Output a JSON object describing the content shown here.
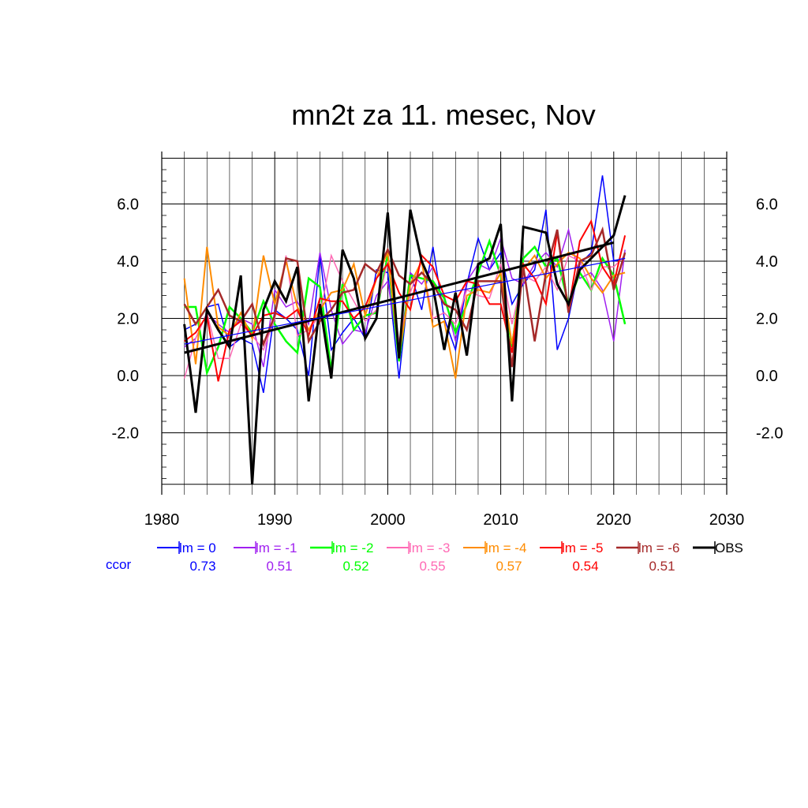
{
  "chart_data": {
    "type": "line",
    "title": "mn2t za 11. mesec, Nov",
    "xlim": [
      1980,
      2030
    ],
    "ylim": [
      -3.8,
      7.6
    ],
    "x_ticks": [
      1980,
      1990,
      2000,
      2010,
      2020,
      2030
    ],
    "x_tick_labels": [
      "1980",
      "1990",
      "2000",
      "2010",
      "2020",
      "2030"
    ],
    "y_ticks": [
      -2,
      0,
      2,
      4,
      6
    ],
    "y_tick_labels": [
      "-2.0",
      "0.0",
      "2.0",
      "4.0",
      "6.0"
    ],
    "grid": true,
    "legend_position": "bottom",
    "ccor_label": "ccor",
    "years": [
      1982,
      1983,
      1984,
      1985,
      1986,
      1987,
      1988,
      1989,
      1990,
      1991,
      1992,
      1993,
      1994,
      1995,
      1996,
      1997,
      1998,
      1999,
      2000,
      2001,
      2002,
      2003,
      2004,
      2005,
      2006,
      2007,
      2008,
      2009,
      2010,
      2011,
      2012,
      2013,
      2014,
      2015,
      2016,
      2017,
      2018,
      2019,
      2020,
      2021
    ],
    "series": [
      {
        "name": "lm = 0",
        "color": "#0000ff",
        "ccor": "0.73",
        "width": 1.5,
        "values": [
          1.6,
          1.8,
          2.4,
          2.5,
          1.0,
          1.3,
          1.1,
          -0.6,
          2.3,
          2.0,
          1.6,
          0.0,
          4.2,
          0.9,
          1.5,
          2.0,
          1.3,
          3.7,
          3.6,
          -0.1,
          3.6,
          2.3,
          4.5,
          2.0,
          0.9,
          3.2,
          4.8,
          3.7,
          4.3,
          2.5,
          3.2,
          3.7,
          5.8,
          0.9,
          2.0,
          3.9,
          4.3,
          7.0,
          4.0,
          4.1
        ]
      },
      {
        "name": "lm = -1",
        "color": "#a020f0",
        "ccor": "0.51",
        "width": 1.5,
        "values": [
          1.0,
          1.3,
          2.2,
          1.8,
          1.5,
          2.0,
          1.8,
          0.3,
          3.0,
          2.4,
          2.6,
          1.8,
          4.3,
          2.3,
          1.1,
          1.6,
          1.5,
          2.8,
          3.3,
          0.8,
          3.6,
          3.2,
          3.8,
          2.8,
          1.2,
          3.3,
          3.9,
          3.7,
          4.8,
          3.4,
          3.2,
          3.9,
          4.3,
          3.8,
          5.1,
          3.4,
          3.6,
          3.0,
          1.2,
          4.4
        ]
      },
      {
        "name": "lm = -2",
        "color": "#00ff00",
        "ccor": "0.52",
        "width": 2.5,
        "values": [
          2.4,
          2.4,
          0.1,
          1.0,
          2.4,
          2.0,
          1.5,
          2.6,
          1.8,
          1.2,
          0.8,
          3.4,
          3.1,
          0.2,
          3.2,
          1.6,
          2.1,
          2.2,
          4.2,
          0.5,
          3.5,
          3.4,
          3.3,
          2.7,
          1.5,
          2.5,
          3.6,
          4.7,
          3.5,
          1.0,
          4.1,
          4.5,
          3.8,
          4.1,
          2.5,
          3.6,
          3.0,
          4.1,
          3.5,
          1.8
        ]
      },
      {
        "name": "lm = -3",
        "color": "#ff69b4",
        "ccor": "0.55",
        "width": 1.5,
        "values": [
          -0.1,
          1.3,
          2.2,
          0.6,
          0.6,
          1.8,
          1.4,
          0.9,
          2.0,
          4.2,
          1.4,
          1.6,
          2.1,
          4.2,
          3.3,
          2.6,
          1.9,
          2.3,
          4.0,
          1.2,
          2.9,
          4.0,
          2.0,
          2.2,
          1.8,
          3.0,
          2.8,
          2.7,
          3.9,
          1.8,
          3.5,
          3.3,
          3.8,
          3.0,
          4.2,
          4.0,
          3.0,
          3.8,
          3.8,
          4.2
        ]
      },
      {
        "name": "lm = -4",
        "color": "#ff8c00",
        "ccor": "0.57",
        "width": 2,
        "values": [
          3.4,
          0.4,
          4.5,
          1.7,
          1.4,
          2.2,
          1.3,
          4.2,
          2.5,
          4.0,
          2.4,
          1.6,
          2.3,
          2.9,
          3.0,
          3.9,
          2.1,
          3.4,
          4.3,
          0.7,
          3.2,
          4.0,
          1.7,
          1.9,
          -0.1,
          2.8,
          3.0,
          2.9,
          3.6,
          1.1,
          3.7,
          4.2,
          3.4,
          3.9,
          4.3,
          4.1,
          3.4,
          2.9,
          3.5,
          3.6
        ]
      },
      {
        "name": "lm = -5",
        "color": "#ff0000",
        "ccor": "0.54",
        "width": 2,
        "values": [
          1.2,
          1.5,
          2.1,
          -0.2,
          1.6,
          1.9,
          1.4,
          2.1,
          2.2,
          2.0,
          2.3,
          1.4,
          2.7,
          2.6,
          2.6,
          2.0,
          2.4,
          3.4,
          3.9,
          2.9,
          2.3,
          4.2,
          3.8,
          2.8,
          2.6,
          3.3,
          3.2,
          2.5,
          2.5,
          0.8,
          3.9,
          3.4,
          2.5,
          5.0,
          2.3,
          4.7,
          5.4,
          3.8,
          3.2,
          4.9
        ]
      },
      {
        "name": "lm = -6",
        "color": "#a52a2a",
        "ccor": "0.51",
        "width": 2.5,
        "values": [
          2.5,
          1.8,
          2.4,
          3.0,
          2.1,
          1.9,
          2.5,
          1.1,
          2.1,
          4.1,
          4.0,
          1.2,
          1.9,
          2.3,
          2.9,
          3.0,
          3.9,
          3.6,
          4.4,
          3.5,
          3.2,
          3.6,
          3.2,
          2.5,
          2.3,
          1.6,
          3.3,
          3.3,
          3.3,
          0.3,
          3.8,
          1.2,
          3.6,
          5.1,
          2.2,
          4.0,
          4.2,
          5.1,
          3.0,
          4.3
        ]
      },
      {
        "name": "OBS",
        "color": "#000000",
        "ccor": "",
        "width": 3,
        "values": [
          1.8,
          -1.3,
          2.3,
          1.6,
          1.0,
          3.5,
          -3.8,
          2.3,
          3.3,
          2.6,
          3.8,
          -0.9,
          2.5,
          -0.1,
          4.4,
          3.4,
          1.3,
          2.0,
          5.7,
          0.6,
          5.8,
          4.0,
          3.1,
          0.9,
          2.9,
          0.7,
          3.9,
          4.1,
          5.3,
          -0.9,
          5.2,
          5.1,
          5.0,
          3.2,
          2.5,
          3.7,
          4.1,
          4.5,
          4.9,
          6.3
        ]
      }
    ],
    "trend_lines": [
      {
        "color": "#000000",
        "width": 3,
        "x": [
          1982,
          2020
        ],
        "y": [
          0.8,
          4.65
        ]
      },
      {
        "color": "#0000ff",
        "width": 1.2,
        "x": [
          1982,
          2021
        ],
        "y": [
          1.1,
          4.1
        ]
      }
    ]
  }
}
